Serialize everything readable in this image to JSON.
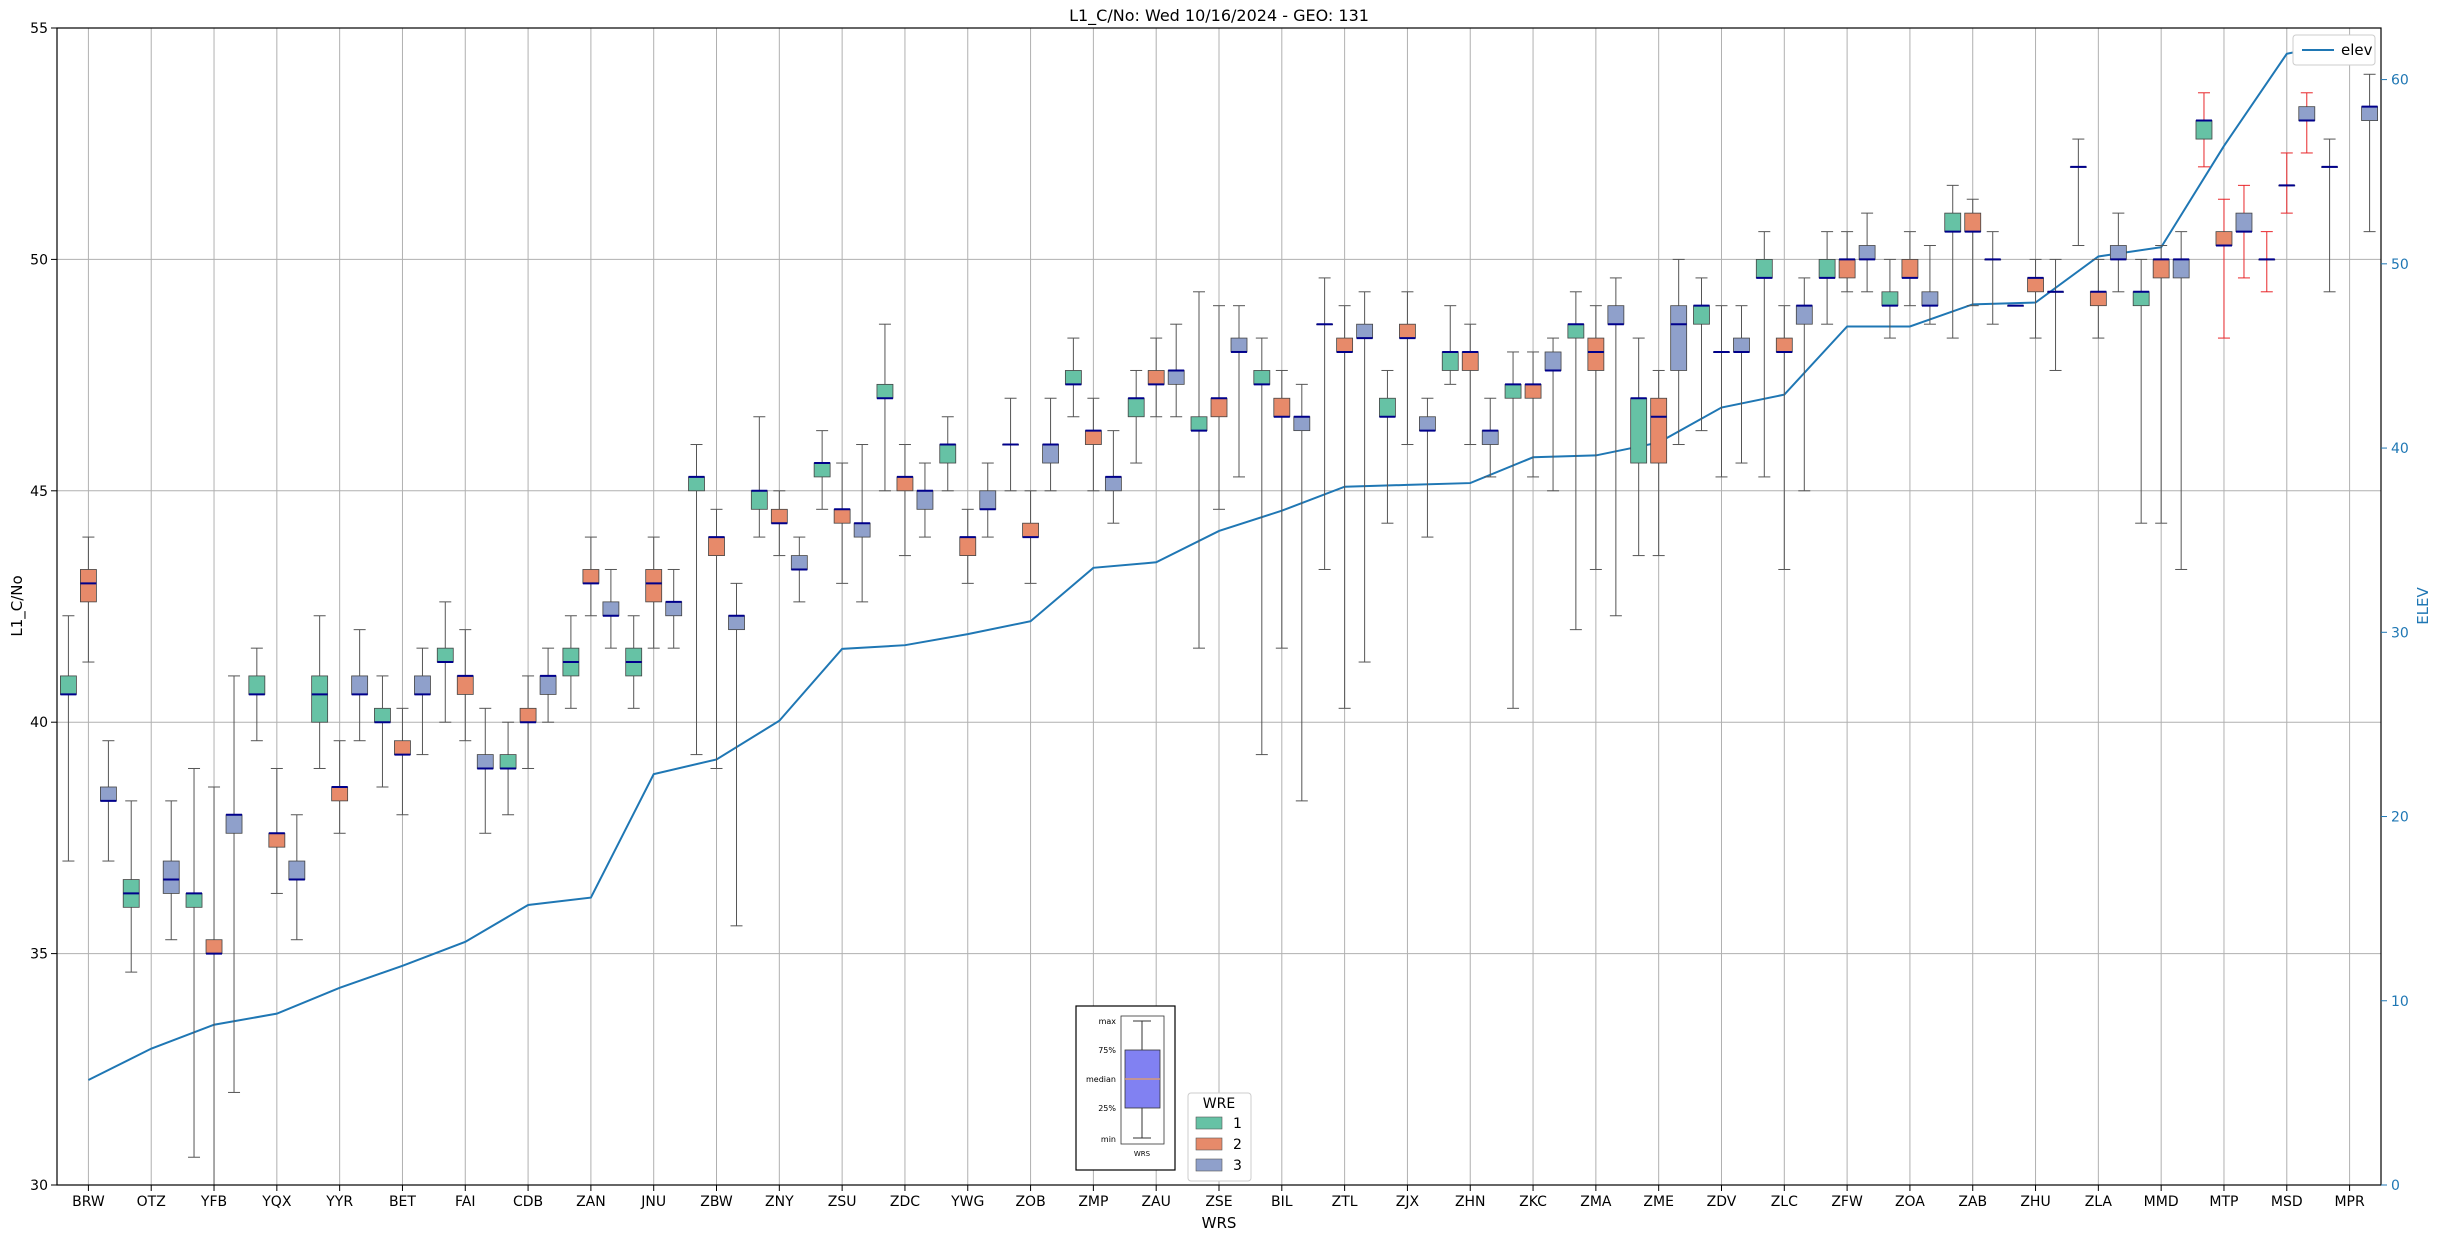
{
  "chart_data": {
    "type": "box",
    "title": "L1_C/No: Wed 10/16/2024 - GEO: 131",
    "xlabel": "WRS",
    "ylabel": "L1_C/No",
    "y2label": "ELEV",
    "ylim": [
      30,
      55
    ],
    "y2lim": [
      0,
      62.8
    ],
    "yticks": [
      30,
      35,
      40,
      45,
      50,
      55
    ],
    "y2ticks": [
      0,
      10,
      20,
      30,
      40,
      50,
      60
    ],
    "grid": true,
    "categories": [
      "BRW",
      "OTZ",
      "YFB",
      "YQX",
      "YYR",
      "BET",
      "FAI",
      "CDB",
      "ZAN",
      "JNU",
      "ZBW",
      "ZNY",
      "ZSU",
      "ZDC",
      "YWG",
      "ZOB",
      "ZMP",
      "ZAU",
      "ZSE",
      "BIL",
      "ZTL",
      "ZJX",
      "ZHN",
      "ZKC",
      "ZMA",
      "ZME",
      "ZDV",
      "ZLC",
      "ZFW",
      "ZOA",
      "ZAB",
      "ZHU",
      "ZLA",
      "MMD",
      "MTP",
      "MSD",
      "MPR"
    ],
    "series_meta": [
      {
        "name": "1",
        "color": "#66c2a5"
      },
      {
        "name": "2",
        "color": "#e78a6a"
      },
      {
        "name": "3",
        "color": "#8fa0cb"
      }
    ],
    "boxes": [
      {
        "c": "BRW",
        "s": "1",
        "min": 37,
        "q1": 40.6,
        "med": 40.6,
        "q3": 41,
        "max": 42.3
      },
      {
        "c": "BRW",
        "s": "2",
        "min": 41.3,
        "q1": 42.6,
        "med": 43,
        "q3": 43.3,
        "max": 44
      },
      {
        "c": "BRW",
        "s": "3",
        "min": 37,
        "q1": 38.3,
        "med": 38.3,
        "q3": 38.6,
        "max": 39.6
      },
      {
        "c": "OTZ",
        "s": "1",
        "min": 34.6,
        "q1": 36,
        "med": 36.3,
        "q3": 36.6,
        "max": 38.3
      },
      {
        "c": "OTZ",
        "s": "3",
        "min": 35.3,
        "q1": 36.3,
        "med": 36.6,
        "q3": 37,
        "max": 38.3
      },
      {
        "c": "YFB",
        "s": "1",
        "min": 30.6,
        "q1": 36,
        "med": 36.3,
        "q3": 36.3,
        "max": 39
      },
      {
        "c": "YFB",
        "s": "2",
        "min": 30,
        "q1": 35,
        "med": 35,
        "q3": 35.3,
        "max": 38.6
      },
      {
        "c": "YFB",
        "s": "3",
        "min": 32,
        "q1": 37.6,
        "med": 38,
        "q3": 38,
        "max": 41
      },
      {
        "c": "YQX",
        "s": "1",
        "min": 39.6,
        "q1": 40.6,
        "med": 40.6,
        "q3": 41,
        "max": 41.6
      },
      {
        "c": "YQX",
        "s": "2",
        "min": 36.3,
        "q1": 37.3,
        "med": 37.6,
        "q3": 37.6,
        "max": 39
      },
      {
        "c": "YQX",
        "s": "3",
        "min": 35.3,
        "q1": 36.6,
        "med": 36.6,
        "q3": 37,
        "max": 38
      },
      {
        "c": "YYR",
        "s": "1",
        "min": 39,
        "q1": 40,
        "med": 40.6,
        "q3": 41,
        "max": 42.3
      },
      {
        "c": "YYR",
        "s": "2",
        "min": 37.6,
        "q1": 38.3,
        "med": 38.6,
        "q3": 38.6,
        "max": 39.6
      },
      {
        "c": "YYR",
        "s": "3",
        "min": 39.6,
        "q1": 40.6,
        "med": 40.6,
        "q3": 41,
        "max": 42
      },
      {
        "c": "BET",
        "s": "1",
        "min": 38.6,
        "q1": 40,
        "med": 40,
        "q3": 40.3,
        "max": 41
      },
      {
        "c": "BET",
        "s": "2",
        "min": 38,
        "q1": 39.3,
        "med": 39.3,
        "q3": 39.6,
        "max": 40.3
      },
      {
        "c": "BET",
        "s": "3",
        "min": 39.3,
        "q1": 40.6,
        "med": 40.6,
        "q3": 41,
        "max": 41.6
      },
      {
        "c": "FAI",
        "s": "1",
        "min": 40,
        "q1": 41.3,
        "med": 41.3,
        "q3": 41.6,
        "max": 42.6
      },
      {
        "c": "FAI",
        "s": "2",
        "min": 39.6,
        "q1": 40.6,
        "med": 41,
        "q3": 41,
        "max": 42
      },
      {
        "c": "FAI",
        "s": "3",
        "min": 37.6,
        "q1": 39,
        "med": 39,
        "q3": 39.3,
        "max": 40.3
      },
      {
        "c": "CDB",
        "s": "1",
        "min": 38,
        "q1": 39,
        "med": 39,
        "q3": 39.3,
        "max": 40
      },
      {
        "c": "CDB",
        "s": "2",
        "min": 39,
        "q1": 40,
        "med": 40,
        "q3": 40.3,
        "max": 41
      },
      {
        "c": "CDB",
        "s": "3",
        "min": 40,
        "q1": 40.6,
        "med": 41,
        "q3": 41,
        "max": 41.6
      },
      {
        "c": "ZAN",
        "s": "1",
        "min": 40.3,
        "q1": 41,
        "med": 41.3,
        "q3": 41.6,
        "max": 42.3
      },
      {
        "c": "ZAN",
        "s": "2",
        "min": 42.3,
        "q1": 43,
        "med": 43,
        "q3": 43.3,
        "max": 44
      },
      {
        "c": "ZAN",
        "s": "3",
        "min": 41.6,
        "q1": 42.3,
        "med": 42.3,
        "q3": 42.6,
        "max": 43.3
      },
      {
        "c": "JNU",
        "s": "1",
        "min": 40.3,
        "q1": 41,
        "med": 41.3,
        "q3": 41.6,
        "max": 42.3
      },
      {
        "c": "JNU",
        "s": "2",
        "min": 41.6,
        "q1": 42.6,
        "med": 43,
        "q3": 43.3,
        "max": 44
      },
      {
        "c": "JNU",
        "s": "3",
        "min": 41.6,
        "q1": 42.3,
        "med": 42.6,
        "q3": 42.6,
        "max": 43.3
      },
      {
        "c": "ZBW",
        "s": "1",
        "min": 39.3,
        "q1": 45,
        "med": 45.3,
        "q3": 45.3,
        "max": 46
      },
      {
        "c": "ZBW",
        "s": "2",
        "min": 39,
        "q1": 43.6,
        "med": 44,
        "q3": 44,
        "max": 44.6
      },
      {
        "c": "ZBW",
        "s": "3",
        "min": 35.6,
        "q1": 42,
        "med": 42.3,
        "q3": 42.3,
        "max": 43
      },
      {
        "c": "ZNY",
        "s": "1",
        "min": 44,
        "q1": 44.6,
        "med": 45,
        "q3": 45,
        "max": 46.6
      },
      {
        "c": "ZNY",
        "s": "2",
        "min": 43.6,
        "q1": 44.3,
        "med": 44.3,
        "q3": 44.6,
        "max": 45
      },
      {
        "c": "ZNY",
        "s": "3",
        "min": 42.6,
        "q1": 43.3,
        "med": 43.3,
        "q3": 43.6,
        "max": 44
      },
      {
        "c": "ZSU",
        "s": "1",
        "min": 44.6,
        "q1": 45.3,
        "med": 45.6,
        "q3": 45.6,
        "max": 46.3
      },
      {
        "c": "ZSU",
        "s": "2",
        "min": 43,
        "q1": 44.3,
        "med": 44.6,
        "q3": 44.6,
        "max": 45.6
      },
      {
        "c": "ZSU",
        "s": "3",
        "min": 42.6,
        "q1": 44,
        "med": 44.3,
        "q3": 44.3,
        "max": 46
      },
      {
        "c": "ZDC",
        "s": "1",
        "min": 45,
        "q1": 47,
        "med": 47,
        "q3": 47.3,
        "max": 48.6
      },
      {
        "c": "ZDC",
        "s": "2",
        "min": 43.6,
        "q1": 45,
        "med": 45.3,
        "q3": 45.3,
        "max": 46
      },
      {
        "c": "ZDC",
        "s": "3",
        "min": 44,
        "q1": 44.6,
        "med": 45,
        "q3": 45,
        "max": 45.6
      },
      {
        "c": "YWG",
        "s": "1",
        "min": 45,
        "q1": 45.6,
        "med": 46,
        "q3": 46,
        "max": 46.6
      },
      {
        "c": "YWG",
        "s": "2",
        "min": 43,
        "q1": 43.6,
        "med": 44,
        "q3": 44,
        "max": 44.6
      },
      {
        "c": "YWG",
        "s": "3",
        "min": 44,
        "q1": 44.6,
        "med": 44.6,
        "q3": 45,
        "max": 45.6
      },
      {
        "c": "ZOB",
        "s": "1",
        "min": 45,
        "q1": 46,
        "med": 46,
        "q3": 46,
        "max": 47
      },
      {
        "c": "ZOB",
        "s": "2",
        "min": 43,
        "q1": 44,
        "med": 44,
        "q3": 44.3,
        "max": 45
      },
      {
        "c": "ZOB",
        "s": "3",
        "min": 45,
        "q1": 45.6,
        "med": 46,
        "q3": 46,
        "max": 47
      },
      {
        "c": "ZMP",
        "s": "1",
        "min": 46.6,
        "q1": 47.3,
        "med": 47.3,
        "q3": 47.6,
        "max": 48.3
      },
      {
        "c": "ZMP",
        "s": "2",
        "min": 45,
        "q1": 46,
        "med": 46.3,
        "q3": 46.3,
        "max": 47
      },
      {
        "c": "ZMP",
        "s": "3",
        "min": 44.3,
        "q1": 45,
        "med": 45.3,
        "q3": 45.3,
        "max": 46.3
      },
      {
        "c": "ZAU",
        "s": "1",
        "min": 45.6,
        "q1": 46.6,
        "med": 47,
        "q3": 47,
        "max": 47.6
      },
      {
        "c": "ZAU",
        "s": "2",
        "min": 46.6,
        "q1": 47.3,
        "med": 47.3,
        "q3": 47.6,
        "max": 48.3
      },
      {
        "c": "ZAU",
        "s": "3",
        "min": 46.6,
        "q1": 47.3,
        "med": 47.6,
        "q3": 47.6,
        "max": 48.6
      },
      {
        "c": "ZSE",
        "s": "1",
        "min": 41.6,
        "q1": 46.3,
        "med": 46.3,
        "q3": 46.6,
        "max": 49.3
      },
      {
        "c": "ZSE",
        "s": "2",
        "min": 44.6,
        "q1": 46.6,
        "med": 47,
        "q3": 47,
        "max": 49
      },
      {
        "c": "ZSE",
        "s": "3",
        "min": 45.3,
        "q1": 48,
        "med": 48,
        "q3": 48.3,
        "max": 49
      },
      {
        "c": "BIL",
        "s": "1",
        "min": 39.3,
        "q1": 47.3,
        "med": 47.3,
        "q3": 47.6,
        "max": 48.3
      },
      {
        "c": "BIL",
        "s": "2",
        "min": 41.6,
        "q1": 46.6,
        "med": 46.6,
        "q3": 47,
        "max": 47.6
      },
      {
        "c": "BIL",
        "s": "3",
        "min": 38.3,
        "q1": 46.3,
        "med": 46.6,
        "q3": 46.6,
        "max": 47.3
      },
      {
        "c": "ZTL",
        "s": "1",
        "min": 43.3,
        "q1": 48.6,
        "med": 48.6,
        "q3": 48.6,
        "max": 49.6
      },
      {
        "c": "ZTL",
        "s": "2",
        "min": 40.3,
        "q1": 48,
        "med": 48,
        "q3": 48.3,
        "max": 49
      },
      {
        "c": "ZTL",
        "s": "3",
        "min": 41.3,
        "q1": 48.3,
        "med": 48.3,
        "q3": 48.6,
        "max": 49.3
      },
      {
        "c": "ZJX",
        "s": "1",
        "min": 44.3,
        "q1": 46.6,
        "med": 46.6,
        "q3": 47,
        "max": 47.6
      },
      {
        "c": "ZJX",
        "s": "2",
        "min": 46,
        "q1": 48.3,
        "med": 48.3,
        "q3": 48.6,
        "max": 49.3
      },
      {
        "c": "ZJX",
        "s": "3",
        "min": 44,
        "q1": 46.3,
        "med": 46.3,
        "q3": 46.6,
        "max": 47
      },
      {
        "c": "ZHN",
        "s": "1",
        "min": 47.3,
        "q1": 47.6,
        "med": 48,
        "q3": 48,
        "max": 49
      },
      {
        "c": "ZHN",
        "s": "2",
        "min": 46,
        "q1": 47.6,
        "med": 48,
        "q3": 48,
        "max": 48.6
      },
      {
        "c": "ZHN",
        "s": "3",
        "min": 45.3,
        "q1": 46,
        "med": 46.3,
        "q3": 46.3,
        "max": 47
      },
      {
        "c": "ZKC",
        "s": "1",
        "min": 40.3,
        "q1": 47,
        "med": 47.3,
        "q3": 47.3,
        "max": 48
      },
      {
        "c": "ZKC",
        "s": "2",
        "min": 45.3,
        "q1": 47,
        "med": 47.3,
        "q3": 47.3,
        "max": 48
      },
      {
        "c": "ZKC",
        "s": "3",
        "min": 45,
        "q1": 47.6,
        "med": 47.6,
        "q3": 48,
        "max": 48.3
      },
      {
        "c": "ZMA",
        "s": "1",
        "min": 42,
        "q1": 48.3,
        "med": 48.6,
        "q3": 48.6,
        "max": 49.3
      },
      {
        "c": "ZMA",
        "s": "2",
        "min": 43.3,
        "q1": 47.6,
        "med": 48,
        "q3": 48.3,
        "max": 49
      },
      {
        "c": "ZMA",
        "s": "3",
        "min": 42.3,
        "q1": 48.6,
        "med": 48.6,
        "q3": 49,
        "max": 49.6
      },
      {
        "c": "ZME",
        "s": "1",
        "min": 43.6,
        "q1": 45.6,
        "med": 47,
        "q3": 47,
        "max": 48.3
      },
      {
        "c": "ZME",
        "s": "2",
        "min": 43.6,
        "q1": 45.6,
        "med": 46.6,
        "q3": 47,
        "max": 47.6
      },
      {
        "c": "ZME",
        "s": "3",
        "min": 46,
        "q1": 47.6,
        "med": 48.6,
        "q3": 49,
        "max": 50
      },
      {
        "c": "ZDV",
        "s": "1",
        "min": 46.3,
        "q1": 48.6,
        "med": 49,
        "q3": 49,
        "max": 49.6
      },
      {
        "c": "ZDV",
        "s": "2",
        "min": 45.3,
        "q1": 48,
        "med": 48,
        "q3": 48,
        "max": 49
      },
      {
        "c": "ZDV",
        "s": "3",
        "min": 45.6,
        "q1": 48,
        "med": 48,
        "q3": 48.3,
        "max": 49
      },
      {
        "c": "ZLC",
        "s": "1",
        "min": 45.3,
        "q1": 49.6,
        "med": 49.6,
        "q3": 50,
        "max": 50.6
      },
      {
        "c": "ZLC",
        "s": "2",
        "min": 43.3,
        "q1": 48,
        "med": 48,
        "q3": 48.3,
        "max": 49
      },
      {
        "c": "ZLC",
        "s": "3",
        "min": 45,
        "q1": 48.6,
        "med": 49,
        "q3": 49,
        "max": 49.6
      },
      {
        "c": "ZFW",
        "s": "1",
        "min": 48.6,
        "q1": 49.6,
        "med": 49.6,
        "q3": 50,
        "max": 50.6
      },
      {
        "c": "ZFW",
        "s": "2",
        "min": 49.3,
        "q1": 49.6,
        "med": 50,
        "q3": 50,
        "max": 50.6
      },
      {
        "c": "ZFW",
        "s": "3",
        "min": 49.3,
        "q1": 50,
        "med": 50,
        "q3": 50.3,
        "max": 51
      },
      {
        "c": "ZOA",
        "s": "1",
        "min": 48.3,
        "q1": 49,
        "med": 49,
        "q3": 49.3,
        "max": 50
      },
      {
        "c": "ZOA",
        "s": "2",
        "min": 49,
        "q1": 49.6,
        "med": 49.6,
        "q3": 50,
        "max": 50.6
      },
      {
        "c": "ZOA",
        "s": "3",
        "min": 48.6,
        "q1": 49,
        "med": 49,
        "q3": 49.3,
        "max": 50.3
      },
      {
        "c": "ZAB",
        "s": "1",
        "min": 48.3,
        "q1": 50.6,
        "med": 50.6,
        "q3": 51,
        "max": 51.6
      },
      {
        "c": "ZAB",
        "s": "2",
        "min": 49,
        "q1": 50.6,
        "med": 50.6,
        "q3": 51,
        "max": 51.3
      },
      {
        "c": "ZAB",
        "s": "3",
        "min": 48.6,
        "q1": 50,
        "med": 50,
        "q3": 50,
        "max": 50.6
      },
      {
        "c": "ZHU",
        "s": "1",
        "min": 49,
        "q1": 49,
        "med": 49,
        "q3": 49,
        "max": 49
      },
      {
        "c": "ZHU",
        "s": "2",
        "min": 48.3,
        "q1": 49.3,
        "med": 49.6,
        "q3": 49.6,
        "max": 50
      },
      {
        "c": "ZHU",
        "s": "3",
        "min": 47.6,
        "q1": 49.3,
        "med": 49.3,
        "q3": 49.3,
        "max": 50
      },
      {
        "c": "ZLA",
        "s": "1",
        "min": 50.3,
        "q1": 52,
        "med": 52,
        "q3": 52,
        "max": 52.6
      },
      {
        "c": "ZLA",
        "s": "2",
        "min": 48.3,
        "q1": 49,
        "med": 49.3,
        "q3": 49.3,
        "max": 50
      },
      {
        "c": "ZLA",
        "s": "3",
        "min": 49.3,
        "q1": 50,
        "med": 50,
        "q3": 50.3,
        "max": 51
      },
      {
        "c": "MMD",
        "s": "1",
        "min": 44.3,
        "q1": 49,
        "med": 49.3,
        "q3": 49.3,
        "max": 50
      },
      {
        "c": "MMD",
        "s": "2",
        "min": 44.3,
        "q1": 49.6,
        "med": 50,
        "q3": 50,
        "max": 50.3
      },
      {
        "c": "MMD",
        "s": "3",
        "min": 43.3,
        "q1": 49.6,
        "med": 50,
        "q3": 50,
        "max": 50.6
      },
      {
        "c": "MTP",
        "s": "1",
        "min": 52,
        "q1": 52.6,
        "med": 53,
        "q3": 53,
        "max": 53.6,
        "red": true
      },
      {
        "c": "MTP",
        "s": "2",
        "min": 48.3,
        "q1": 50.3,
        "med": 50.3,
        "q3": 50.6,
        "max": 51.3,
        "red": true
      },
      {
        "c": "MTP",
        "s": "3",
        "min": 49.6,
        "q1": 50.6,
        "med": 50.6,
        "q3": 51,
        "max": 51.6,
        "red": true
      },
      {
        "c": "MSD",
        "s": "1",
        "min": 49.3,
        "q1": 50,
        "med": 50,
        "q3": 50,
        "max": 50.6,
        "red": true
      },
      {
        "c": "MSD",
        "s": "2",
        "min": 51,
        "q1": 51.6,
        "med": 51.6,
        "q3": 51.6,
        "max": 52.3,
        "red": true
      },
      {
        "c": "MSD",
        "s": "3",
        "min": 52.3,
        "q1": 53,
        "med": 53,
        "q3": 53.3,
        "max": 53.6,
        "red": true
      },
      {
        "c": "MPR",
        "s": "1",
        "min": 49.3,
        "q1": 52,
        "med": 52,
        "q3": 52,
        "max": 52.6
      },
      {
        "c": "MPR",
        "s": "3",
        "min": 50.6,
        "q1": 53,
        "med": 53.3,
        "q3": 53.3,
        "max": 54
      }
    ],
    "elev": {
      "name": "elev",
      "values": [
        5.7,
        7.4,
        8.7,
        9.3,
        10.7,
        11.9,
        13.2,
        15.2,
        15.6,
        22.3,
        23.1,
        25.2,
        29.1,
        29.3,
        29.9,
        30.6,
        33.5,
        33.8,
        35.5,
        36.6,
        37.9,
        38.0,
        38.1,
        39.5,
        39.6,
        40.3,
        42.2,
        42.9,
        46.6,
        46.6,
        47.8,
        47.9,
        50.4,
        50.9,
        56.4,
        61.4,
        62.1
      ]
    },
    "legend": {
      "elev_placement": "top-right",
      "wre_title": "WRE",
      "wre_placement": "bottom-center"
    },
    "reference_box_labels": [
      "max",
      "75%",
      "median",
      "25%",
      "min",
      "WRS"
    ]
  }
}
